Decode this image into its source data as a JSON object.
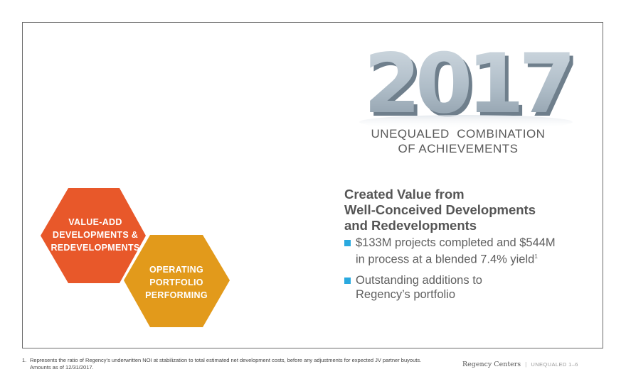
{
  "hero": {
    "year": "2017",
    "subtitle_line1": "UNEQUALED  COMBINATION",
    "subtitle_line2": "OF ACHIEVEMENTS"
  },
  "hexagons": [
    {
      "line1": "VALUE-ADD",
      "line2": "DEVELOPMENTS &",
      "line3": "REDEVELOPMENTS",
      "color": "#e8582a"
    },
    {
      "line1": "OPERATING",
      "line2": "PORTFOLIO",
      "line3": "PERFORMING",
      "color": "#e29a1b"
    }
  ],
  "content": {
    "headline_line1": "Created Value from",
    "headline_line2": "Well-Conceived Developments",
    "headline_line3": "and Redevelopments",
    "bullets": [
      {
        "line1": "$133M projects completed and $544M",
        "line2_text": "in process at a blended 7.4% yield",
        "footnote_ref": "1"
      },
      {
        "line1": "Outstanding additions to",
        "line2_text": "Regency’s portfolio"
      }
    ],
    "bullet_color": "#2aa9df"
  },
  "footer": {
    "footnote_number": "1.",
    "footnote_line1": "Represents the ratio of Regency’s underwritten NOI at stabilization to total estimated net development costs, before any adjustments for expected JV partner buyouts.",
    "footnote_line2": "Amounts as of 12/31/2017.",
    "brand": "Regency Centers",
    "separator": "|",
    "page_label": "UNEQUALED 1–6"
  }
}
